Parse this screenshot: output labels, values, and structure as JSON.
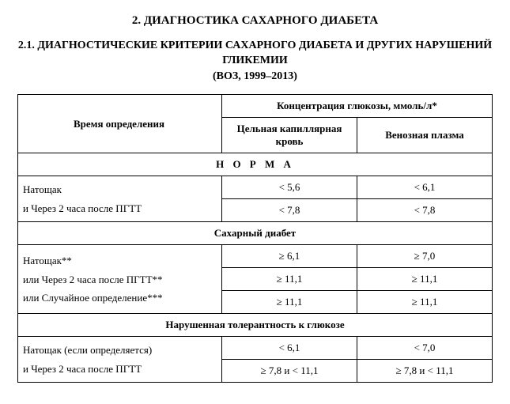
{
  "title_main": "2. ДИАГНОСТИКА САХАРНОГО ДИАБЕТА",
  "title_sub_line1": "2.1. ДИАГНОСТИЧЕСКИЕ КРИТЕРИИ САХАРНОГО ДИАБЕТА И ДРУГИХ НАРУШЕНИЙ ГЛИКЕМИИ",
  "title_sub_line2": "(ВОЗ, 1999–2013)",
  "headers": {
    "time": "Время определения",
    "concentration": "Концентрация глюкозы, ммоль/л*",
    "capillary": "Цельная капиллярная кровь",
    "venous": "Венозная плазма"
  },
  "sections": {
    "norm": "Н О Р М А",
    "diabetes": "Сахарный диабет",
    "igt": "Нарушенная толерантность к глюкозе"
  },
  "rows": {
    "norm_time_a": "Натощак",
    "norm_time_b": "и Через 2 часа после ПГТТ",
    "norm_cap_a": "< 5,6",
    "norm_ven_a": "< 6,1",
    "norm_cap_b": "< 7,8",
    "norm_ven_b": "< 7,8",
    "dm_time_a": "Натощак**",
    "dm_time_b": "или Через 2 часа после ПГТТ**",
    "dm_time_c": "или Случайное определение***",
    "dm_cap_a": "≥ 6,1",
    "dm_ven_a": "≥ 7,0",
    "dm_cap_b": "≥ 11,1",
    "dm_ven_b": "≥ 11,1",
    "dm_cap_c": "≥ 11,1",
    "dm_ven_c": "≥ 11,1",
    "igt_time_a": "Натощак (если определяется)",
    "igt_time_b": "и Через 2 часа после ПГТТ",
    "igt_cap_a": "< 6,1",
    "igt_ven_a": "< 7,0",
    "igt_cap_b": "≥ 7,8 и < 11,1",
    "igt_ven_b": "≥ 7,8 и < 11,1"
  },
  "colors": {
    "text": "#000000",
    "bg": "#ffffff",
    "border": "#000000"
  },
  "font": {
    "family": "serif",
    "title_size_pt": 15,
    "body_size_pt": 13
  }
}
